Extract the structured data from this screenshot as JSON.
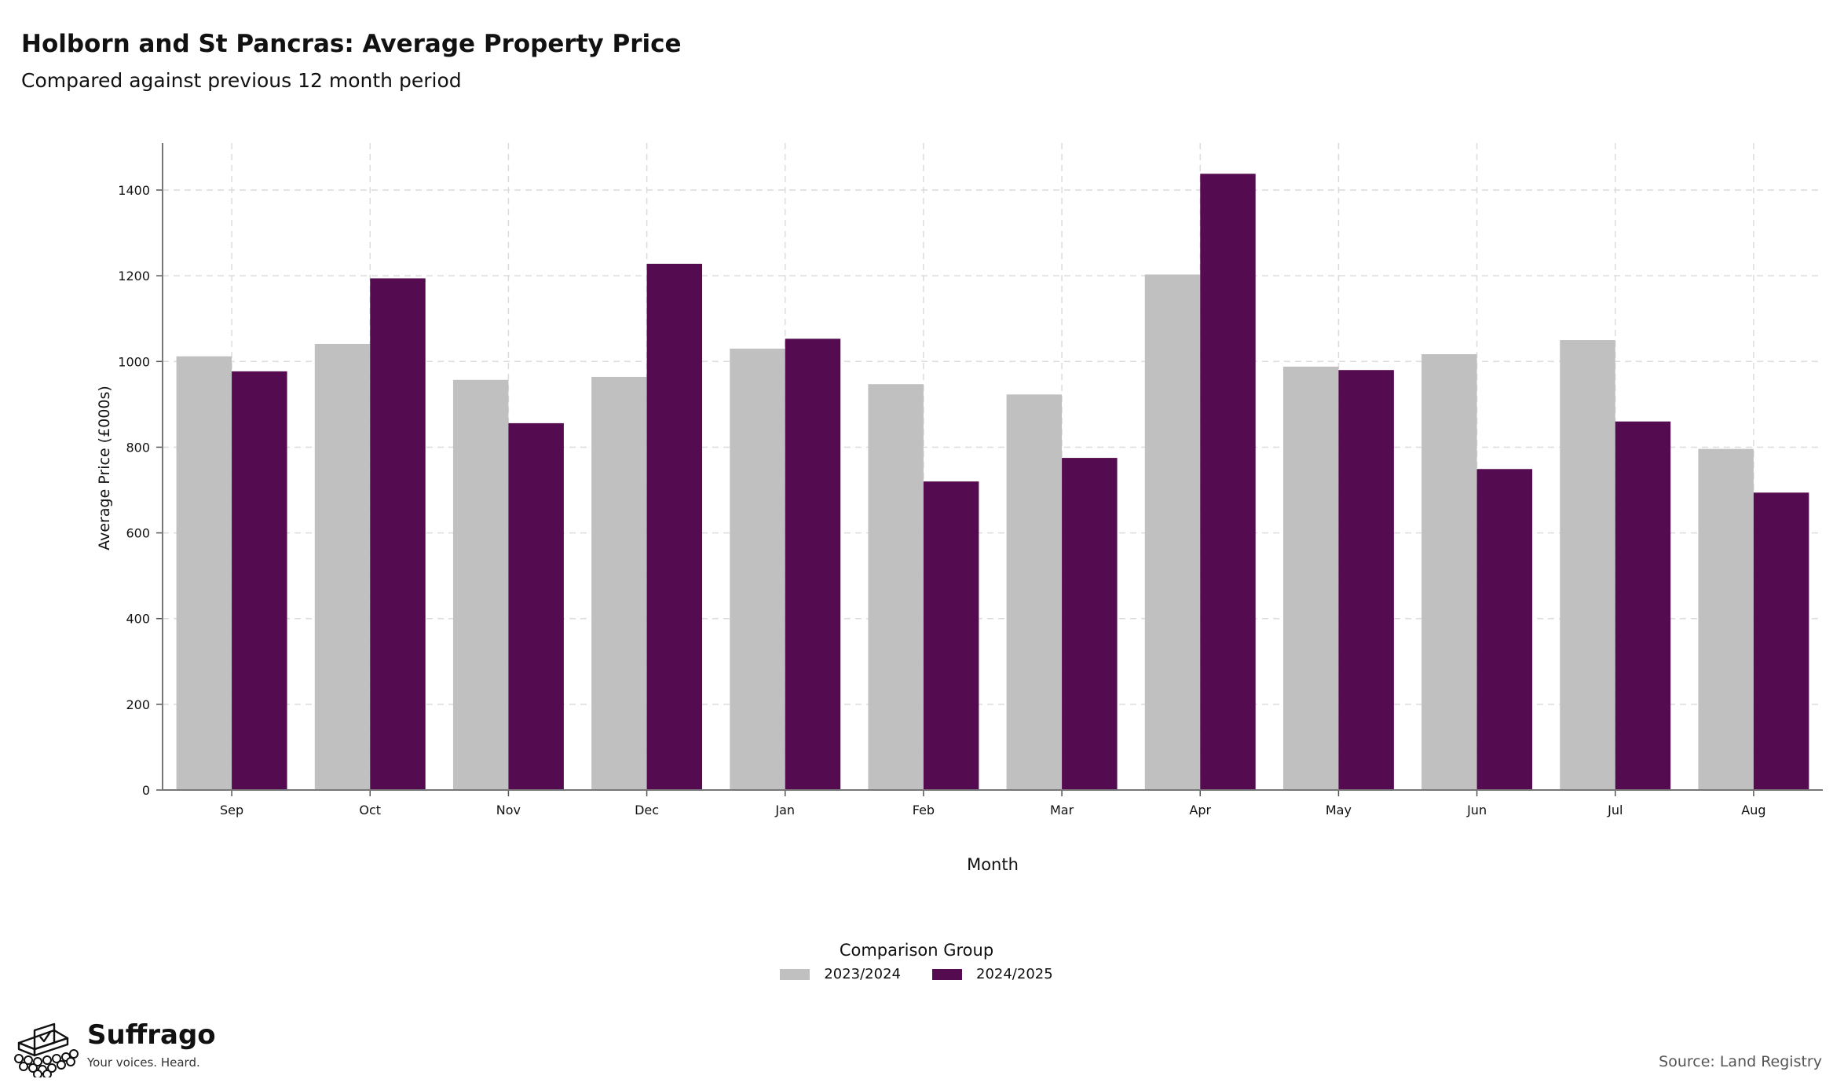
{
  "title": "Holborn and St Pancras: Average Property Price",
  "subtitle": "Compared against previous 12 month period",
  "legend": {
    "title": "Comparison Group"
  },
  "source": "Source: Land Registry",
  "brand": {
    "name": "Suffrago",
    "tagline": "Your voices. Heard.",
    "icon": "ballot-box-icon"
  },
  "colors": {
    "series_2023": "#c0c0c0",
    "series_2024": "#550b50"
  },
  "chart_data": {
    "type": "bar",
    "xlabel": "Month",
    "ylabel": "Average Price (£000s)",
    "ylim": [
      0,
      1510
    ],
    "yticks": [
      0,
      200,
      400,
      600,
      800,
      1000,
      1200,
      1400
    ],
    "grid": true,
    "legend_position": "bottom",
    "categories": [
      "Sep",
      "Oct",
      "Nov",
      "Dec",
      "Jan",
      "Feb",
      "Mar",
      "Apr",
      "May",
      "Jun",
      "Jul",
      "Aug"
    ],
    "series": [
      {
        "name": "2023/2024",
        "color": "#c0c0c0",
        "values": [
          1012,
          1041,
          957,
          964,
          1030,
          947,
          923,
          1203,
          988,
          1017,
          1050,
          796
        ]
      },
      {
        "name": "2024/2025",
        "color": "#550b50",
        "values": [
          977,
          1194,
          856,
          1228,
          1053,
          720,
          775,
          1438,
          980,
          749,
          860,
          694
        ]
      }
    ]
  }
}
